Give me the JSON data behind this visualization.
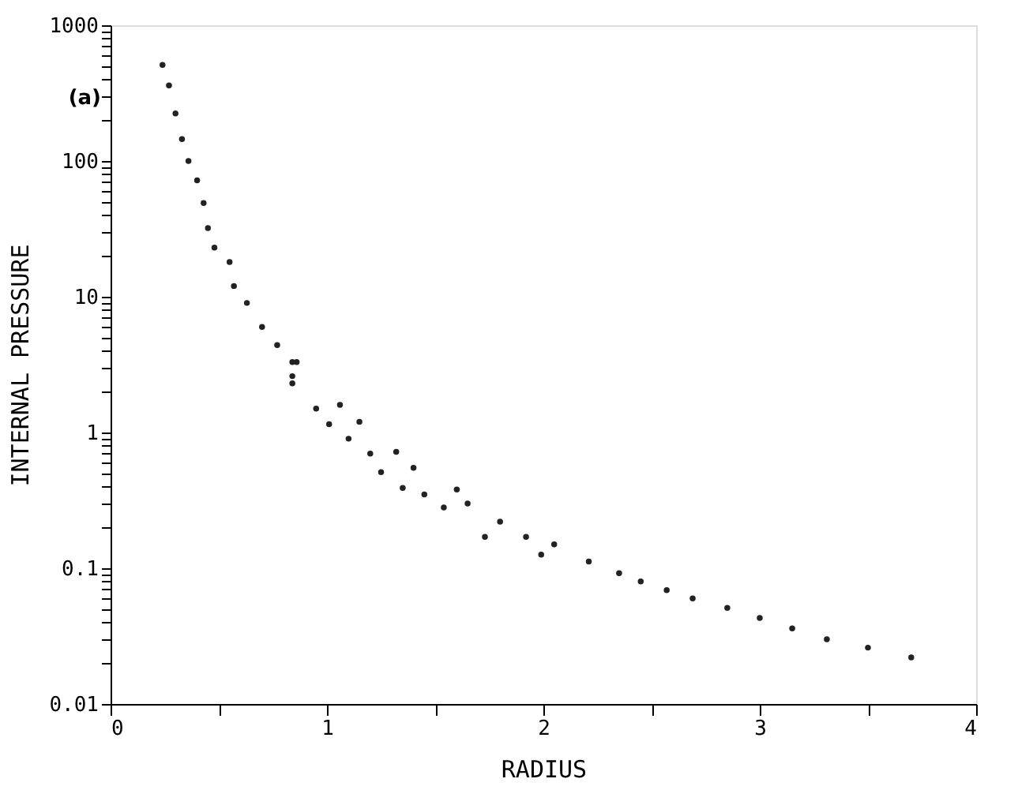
{
  "chart_data": {
    "type": "scatter",
    "xlabel": "RADIUS",
    "ylabel": "INTERNAL PRESSURE",
    "annotations": [
      "(a)"
    ],
    "x": [
      0.24,
      0.27,
      0.3,
      0.33,
      0.36,
      0.4,
      0.43,
      0.45,
      0.48,
      0.55,
      0.57,
      0.63,
      0.7,
      0.77,
      0.84,
      0.84,
      0.86,
      0.84,
      0.95,
      1.01,
      1.06,
      1.1,
      1.15,
      1.2,
      1.25,
      1.32,
      1.35,
      1.4,
      1.45,
      1.54,
      1.6,
      1.65,
      1.73,
      1.8,
      1.92,
      1.99,
      2.05,
      2.21,
      2.35,
      2.45,
      2.57,
      2.69,
      2.85,
      3.0,
      3.15,
      3.31,
      3.5,
      3.7
    ],
    "series": [
      {
        "color": "#222222",
        "values": [
          510,
          360,
          224,
          145,
          100,
          72,
          49,
          32,
          23,
          18,
          12,
          9,
          6,
          4.4,
          3.3,
          2.3,
          3.3,
          2.6,
          1.5,
          1.15,
          1.6,
          0.9,
          1.2,
          0.7,
          0.51,
          0.72,
          0.39,
          0.55,
          0.35,
          0.28,
          0.38,
          0.3,
          0.17,
          0.22,
          0.17,
          0.126,
          0.15,
          0.112,
          0.092,
          0.08,
          0.069,
          0.06,
          0.051,
          0.043,
          0.036,
          0.03,
          0.026,
          0.022
        ]
      }
    ],
    "marker": "circle",
    "log": "y",
    "grid": false,
    "xlim": [
      0,
      4
    ],
    "ylim": [
      0.01,
      1000
    ],
    "xticks": [
      0,
      {
        "value": 0.5,
        "label": null
      },
      1,
      {
        "value": 1.5,
        "label": null
      },
      2,
      {
        "value": 2.5,
        "label": null
      },
      3,
      {
        "value": 3.5,
        "label": null
      },
      4
    ],
    "yticks": [
      0.01,
      {
        "value": 0.02,
        "label": null
      },
      {
        "value": 0.03,
        "label": null
      },
      {
        "value": 0.04,
        "label": null
      },
      {
        "value": 0.05,
        "label": null
      },
      {
        "value": 0.06,
        "label": null
      },
      {
        "value": 0.07,
        "label": null
      },
      {
        "value": 0.08,
        "label": null
      },
      {
        "value": 0.09,
        "label": null
      },
      0.1,
      {
        "value": 0.2,
        "label": null
      },
      {
        "value": 0.3,
        "label": null
      },
      {
        "value": 0.4,
        "label": null
      },
      {
        "value": 0.5,
        "label": null
      },
      {
        "value": 0.6,
        "label": null
      },
      {
        "value": 0.7,
        "label": null
      },
      {
        "value": 0.8,
        "label": null
      },
      {
        "value": 0.9,
        "label": null
      },
      1,
      {
        "value": 2,
        "label": null
      },
      {
        "value": 3,
        "label": null
      },
      {
        "value": 4,
        "label": null
      },
      {
        "value": 5,
        "label": null
      },
      {
        "value": 6,
        "label": null
      },
      {
        "value": 7,
        "label": null
      },
      {
        "value": 8,
        "label": null
      },
      {
        "value": 9,
        "label": null
      },
      10,
      {
        "value": 20,
        "label": null
      },
      {
        "value": 30,
        "label": null
      },
      {
        "value": 40,
        "label": null
      },
      {
        "value": 50,
        "label": null
      },
      {
        "value": 60,
        "label": null
      },
      {
        "value": 70,
        "label": null
      },
      {
        "value": 80,
        "label": null
      },
      {
        "value": 90,
        "label": null
      },
      100,
      {
        "value": 200,
        "label": null
      },
      {
        "value": 300,
        "label": null
      },
      {
        "value": 400,
        "label": null
      },
      {
        "value": 500,
        "label": null
      },
      {
        "value": 600,
        "label": null
      },
      {
        "value": 700,
        "label": null
      },
      {
        "value": 800,
        "label": null
      },
      {
        "value": 900,
        "label": null
      },
      1000
    ]
  }
}
